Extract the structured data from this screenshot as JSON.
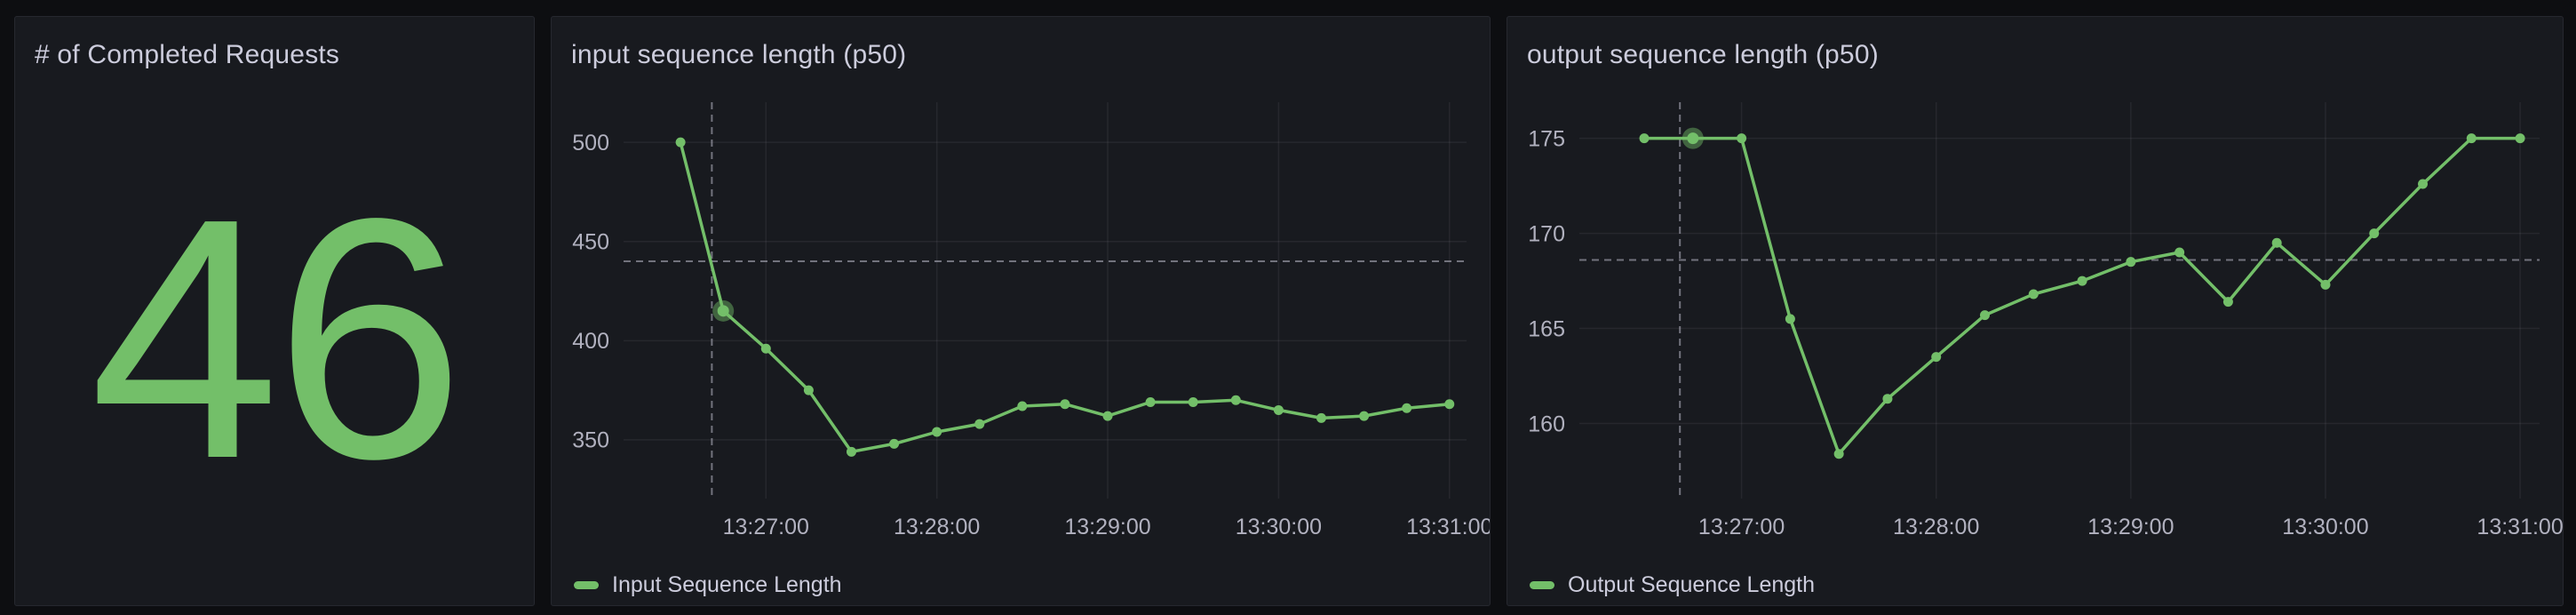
{
  "page": {
    "bg_color": "#0D0E11",
    "panel_bg_color": "#181A1F",
    "panel_border_color": "#26282F",
    "accent_green": "#73BF69",
    "text_color": "#CCCCDC"
  },
  "panels": {
    "stat": {
      "title": "# of Completed Requests",
      "value": "46",
      "value_color": "#73BF69"
    },
    "input_chart": {
      "title": "input sequence length (p50)",
      "legend_label": "Input Sequence Length",
      "series_color": "#73BF69"
    },
    "output_chart": {
      "title": "output sequence length (p50)",
      "legend_label": "Output Sequence Length",
      "series_color": "#73BF69"
    }
  },
  "chart_data": [
    {
      "type": "line",
      "title": "input sequence length (p50)",
      "legend_position": "bottom-left",
      "grid": true,
      "x_times": [
        "13:26:30",
        "13:26:45",
        "13:27:00",
        "13:27:15",
        "13:27:30",
        "13:27:45",
        "13:28:00",
        "13:28:15",
        "13:28:30",
        "13:28:45",
        "13:29:00",
        "13:29:15",
        "13:29:30",
        "13:29:45",
        "13:30:00",
        "13:30:15",
        "13:30:30",
        "13:30:45",
        "13:31:00"
      ],
      "series": [
        {
          "name": "Input Sequence Length",
          "color": "#73BF69",
          "values": [
            500,
            415,
            396,
            375,
            344,
            348,
            354,
            358,
            367,
            368,
            362,
            369,
            369,
            370,
            365,
            361,
            362,
            366,
            368
          ]
        }
      ],
      "x_axis": {
        "tick_labels": [
          "13:27:00",
          "13:28:00",
          "13:29:00",
          "13:30:00",
          "13:31:00"
        ],
        "tick_seconds": [
          50,
          110,
          170,
          230,
          290
        ],
        "domain_seconds": [
          0,
          296
        ],
        "point_start_second": 20,
        "point_interval_seconds": 15
      },
      "y_axis": {
        "ticks": [
          350,
          400,
          450,
          500
        ],
        "domain": [
          320.4,
          520.2
        ]
      },
      "crosshair": {
        "x_second": 31,
        "y_value": 440
      },
      "hover_point_index": 1
    },
    {
      "type": "line",
      "title": "output sequence length (p50)",
      "legend_position": "bottom-left",
      "grid": true,
      "x_times": [
        "13:26:30",
        "13:26:45",
        "13:27:00",
        "13:27:15",
        "13:27:30",
        "13:27:45",
        "13:28:00",
        "13:28:15",
        "13:28:30",
        "13:28:45",
        "13:29:00",
        "13:29:15",
        "13:29:30",
        "13:29:45",
        "13:30:00",
        "13:30:15",
        "13:30:30",
        "13:30:45",
        "13:31:00"
      ],
      "series": [
        {
          "name": "Output Sequence Length",
          "color": "#73BF69",
          "values": [
            175,
            175,
            175,
            165.5,
            158.4,
            161.3,
            163.5,
            165.7,
            166.8,
            167.5,
            168.5,
            169,
            166.4,
            169.5,
            167.3,
            170,
            172.6,
            175,
            175
          ]
        }
      ],
      "x_axis": {
        "tick_labels": [
          "13:27:00",
          "13:28:00",
          "13:29:00",
          "13:30:00",
          "13:31:00"
        ],
        "tick_seconds": [
          50,
          110,
          170,
          230,
          290
        ],
        "domain_seconds": [
          0,
          296
        ],
        "point_start_second": 20,
        "point_interval_seconds": 15
      },
      "y_axis": {
        "ticks": [
          160,
          165,
          170,
          175
        ],
        "domain": [
          156.05,
          176.9
        ]
      },
      "crosshair": {
        "x_second": 31,
        "y_value": 168.6
      },
      "hover_point_index": 1
    }
  ]
}
